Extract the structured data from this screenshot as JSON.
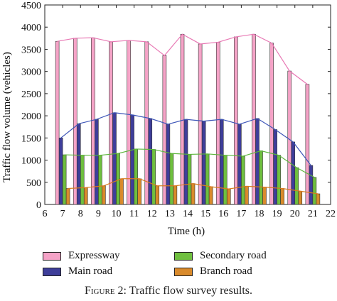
{
  "chart_data": {
    "type": "bar",
    "title": "",
    "xlabel": "Time (h)",
    "ylabel": "Traffic flow volume (vehicles)",
    "xlim": [
      6,
      22
    ],
    "ylim": [
      0,
      4500
    ],
    "xticks": [
      6,
      7,
      8,
      9,
      10,
      11,
      12,
      13,
      14,
      15,
      16,
      17,
      18,
      19,
      20,
      21,
      22
    ],
    "yticks": [
      0,
      500,
      1000,
      1500,
      2000,
      2500,
      3000,
      3500,
      4000,
      4500
    ],
    "x": [
      7,
      8,
      9,
      10,
      11,
      12,
      13,
      14,
      15,
      16,
      17,
      18,
      19,
      20,
      21
    ],
    "series": [
      {
        "name": "Expressway",
        "color": "#f5a3c7",
        "line_color": "#e878b4",
        "values": [
          3680,
          3750,
          3760,
          3670,
          3700,
          3670,
          3360,
          3840,
          3620,
          3660,
          3780,
          3840,
          3640,
          3010,
          2710
        ]
      },
      {
        "name": "Main road",
        "color": "#3e3e9a",
        "line_color": "#3e56b8",
        "values": [
          1500,
          1820,
          1920,
          2070,
          2020,
          1940,
          1810,
          1920,
          1880,
          1920,
          1810,
          1940,
          1690,
          1410,
          880
        ]
      },
      {
        "name": "Secondary road",
        "color": "#6fbf3f",
        "line_color": "#5bb53a",
        "values": [
          1120,
          1110,
          1110,
          1150,
          1250,
          1240,
          1150,
          1130,
          1140,
          1110,
          1090,
          1210,
          1110,
          830,
          610
        ]
      },
      {
        "name": "Branch road",
        "color": "#d98a2b",
        "line_color": "#d97a1e",
        "values": [
          360,
          380,
          420,
          580,
          580,
          420,
          420,
          470,
          400,
          350,
          410,
          390,
          360,
          300,
          240
        ]
      }
    ],
    "legend_position": "bottom",
    "grid": false
  },
  "caption": {
    "label": "Figure 2:",
    "text": "Traffic flow survey results."
  }
}
